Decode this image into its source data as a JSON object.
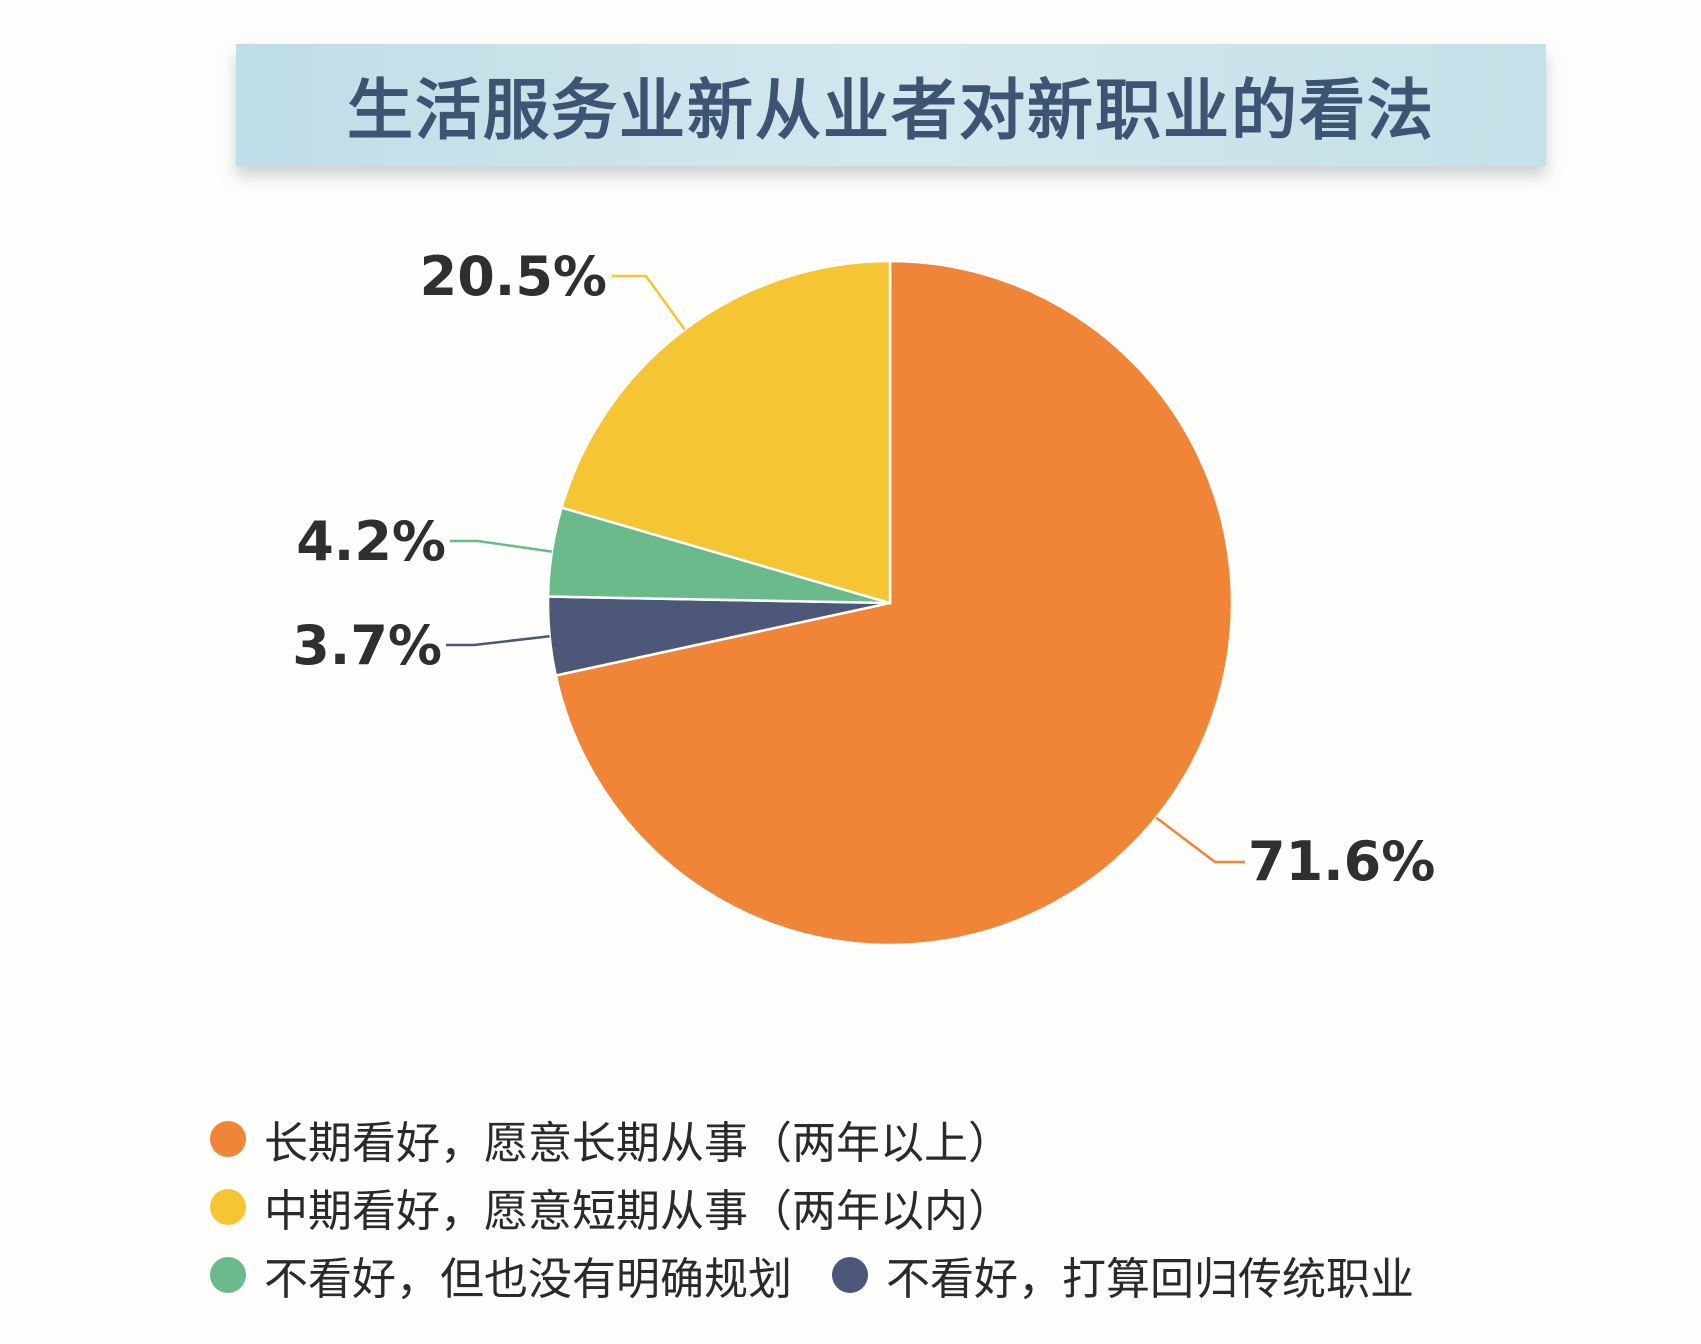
{
  "title": "生活服务业新从业者对新职业的看法",
  "chart_data": {
    "type": "pie",
    "title": "生活服务业新从业者对新职业的看法",
    "slices": [
      {
        "label": "长期看好，愿意长期从事（两年以上）",
        "value": 71.6,
        "display": "71.6%",
        "color": "#f08437"
      },
      {
        "label": "不看好，打算回归传统职业",
        "value": 3.7,
        "display": "3.7%",
        "color": "#4d5878"
      },
      {
        "label": "不看好，但也没有明确规划",
        "value": 4.2,
        "display": "4.2%",
        "color": "#6bba8b"
      },
      {
        "label": "中期看好，愿意短期从事（两年以内）",
        "value": 20.5,
        "display": "20.5%",
        "color": "#f6c533"
      }
    ],
    "start_angle_deg": 0,
    "direction": "clockwise",
    "legend_position": "bottom"
  },
  "legend": {
    "rows": [
      [
        {
          "slice": 0
        }
      ],
      [
        {
          "slice": 3
        }
      ],
      [
        {
          "slice": 2
        },
        {
          "slice": 1
        }
      ]
    ]
  }
}
